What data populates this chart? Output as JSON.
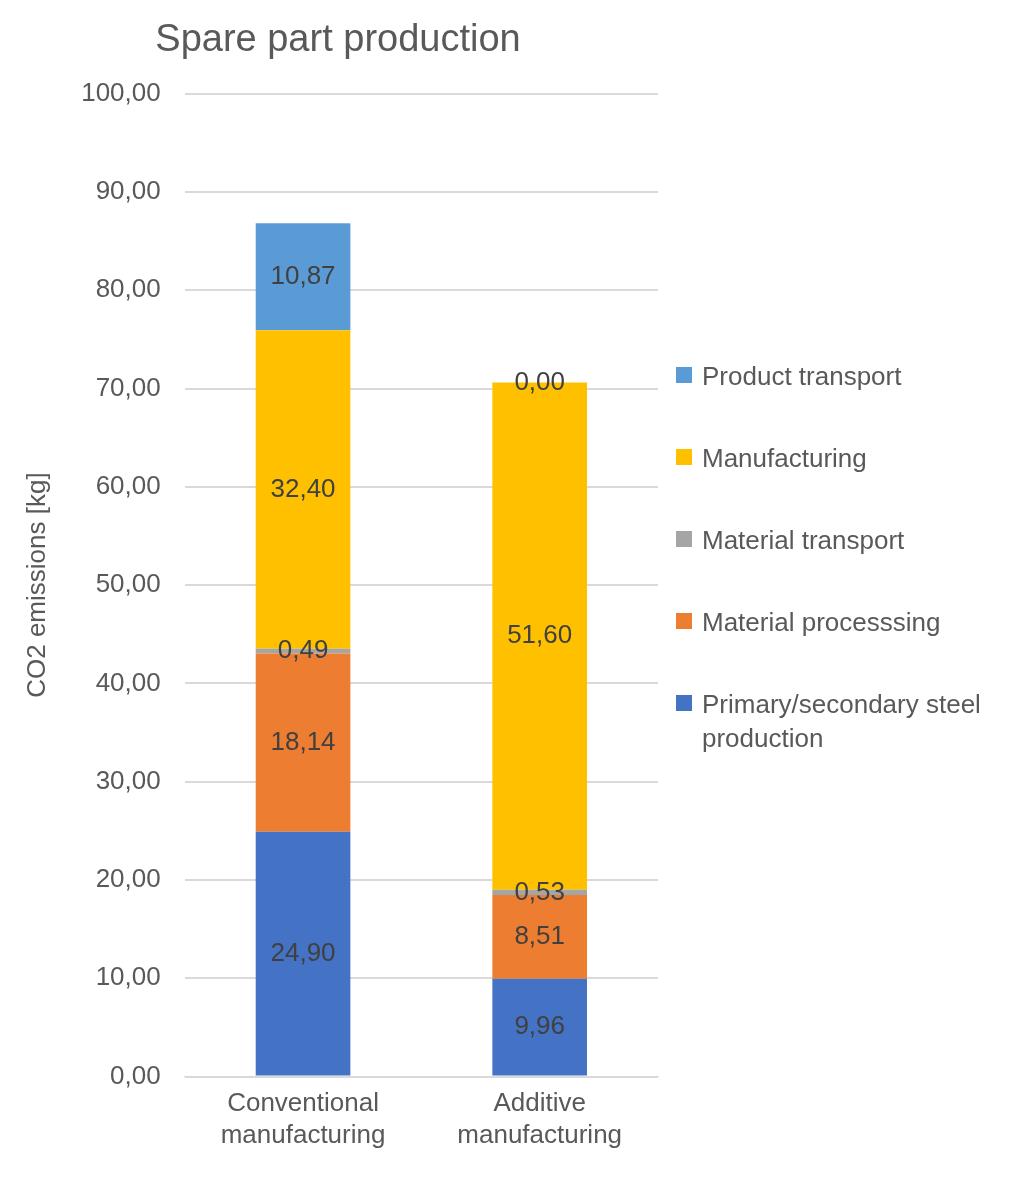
{
  "chart_data": {
    "type": "bar",
    "title": "Spare part production",
    "ylabel": "CO2 emissions [kg]",
    "categories": [
      "Conventional manufacturing",
      "Additive manufacturing"
    ],
    "stacked": true,
    "series": [
      {
        "name": "Primary/secondary steel production",
        "color": "#4472c4",
        "values": [
          24.9,
          9.96
        ],
        "value_labels": [
          "24,90",
          "9,96"
        ]
      },
      {
        "name": "Material processsing",
        "color": "#ed7d31",
        "values": [
          18.14,
          8.51
        ],
        "value_labels": [
          "18,14",
          "8,51"
        ]
      },
      {
        "name": "Material transport",
        "color": "#a5a5a5",
        "values": [
          0.49,
          0.53
        ],
        "value_labels": [
          "0,49",
          "0,53"
        ]
      },
      {
        "name": "Manufacturing",
        "color": "#ffc000",
        "values": [
          32.4,
          51.6
        ],
        "value_labels": [
          "32,40",
          "51,60"
        ]
      },
      {
        "name": "Product transport",
        "color": "#5b9bd5",
        "values": [
          10.87,
          0.0
        ],
        "value_labels": [
          "10,87",
          "0,00"
        ]
      }
    ],
    "ylim": [
      0,
      100
    ],
    "yticks": [
      {
        "value": 0,
        "label": "0,00"
      },
      {
        "value": 10,
        "label": "10,00"
      },
      {
        "value": 20,
        "label": "20,00"
      },
      {
        "value": 30,
        "label": "30,00"
      },
      {
        "value": 40,
        "label": "40,00"
      },
      {
        "value": 50,
        "label": "50,00"
      },
      {
        "value": 60,
        "label": "60,00"
      },
      {
        "value": 70,
        "label": "70,00"
      },
      {
        "value": 80,
        "label": "80,00"
      },
      {
        "value": 90,
        "label": "90,00"
      },
      {
        "value": 100,
        "label": "100,00"
      }
    ],
    "grid": "y",
    "legend": "right"
  }
}
